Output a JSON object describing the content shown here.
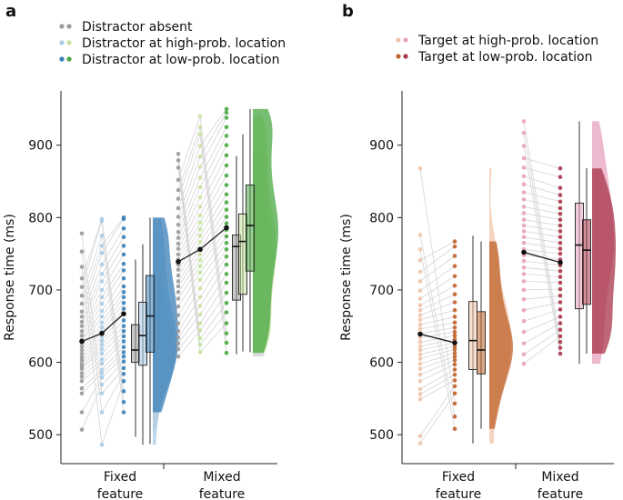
{
  "chart_data": [
    {
      "panel_label": "a",
      "type": "raincloud",
      "ylabel": "Response time (ms)",
      "yticks": [
        500,
        600,
        700,
        800,
        900
      ],
      "ylim": [
        460,
        975
      ],
      "groups": [
        "Fixed\nfeature",
        "Mixed\nfeature"
      ],
      "legend": [
        {
          "label": "Distractor absent",
          "dots": [
            "#9a9a9a",
            "#9a9a9a"
          ]
        },
        {
          "label": "Distractor at high-prob. location",
          "dots": [
            "#a9cbe6",
            "#c6e3a1"
          ]
        },
        {
          "label": "Distractor at low-prob. location",
          "dots": [
            "#3a7fb7",
            "#4aa844"
          ]
        }
      ],
      "series_colors": {
        "Fixed": [
          "#9a9a9a",
          "#a9cbe6",
          "#3a7fb7"
        ],
        "Mixed": [
          "#9a9a9a",
          "#c6e3a1",
          "#4aa844"
        ]
      },
      "means": {
        "Fixed": [
          629,
          640,
          667
        ],
        "Mixed": [
          739,
          756,
          786
        ]
      },
      "boxes": {
        "Fixed": [
          {
            "q1": 600,
            "median": 617,
            "q3": 652,
            "whisker_low": 497,
            "whisker_high": 742
          },
          {
            "q1": 596,
            "median": 637,
            "q3": 683,
            "whisker_low": 486,
            "whisker_high": 763
          },
          {
            "q1": 614,
            "median": 664,
            "q3": 720,
            "whisker_low": 487,
            "whisker_high": 800
          }
        ],
        "Mixed": [
          {
            "q1": 686,
            "median": 760,
            "q3": 776,
            "whisker_low": 611,
            "whisker_high": 885
          },
          {
            "q1": 694,
            "median": 767,
            "q3": 805,
            "whisker_low": 615,
            "whisker_high": 915
          },
          {
            "q1": 726,
            "median": 789,
            "q3": 845,
            "whisker_low": 614,
            "whisker_high": 950
          }
        ]
      },
      "points": {
        "Fixed": [
          [
            507,
            531,
            557,
            564,
            574,
            580,
            585,
            591,
            594,
            598,
            603,
            607,
            612,
            617,
            622,
            627,
            631,
            637,
            643,
            650,
            656,
            663,
            670,
            681,
            692,
            704,
            716,
            732,
            753,
            778
          ],
          [
            486,
            531,
            557,
            569,
            579,
            585,
            590,
            598,
            604,
            612,
            618,
            624,
            630,
            636,
            642,
            648,
            655,
            663,
            671,
            681,
            690,
            700,
            712,
            722,
            735,
            751,
            761,
            775,
            795,
            798
          ],
          [
            531,
            545,
            560,
            574,
            584,
            592,
            601,
            608,
            614,
            621,
            629,
            636,
            643,
            650,
            658,
            667,
            674,
            682,
            690,
            697,
            705,
            716,
            727,
            736,
            749,
            761,
            773,
            785,
            798,
            800
          ]
        ],
        "Mixed": [
          [
            608,
            618,
            626,
            634,
            643,
            654,
            665,
            677,
            688,
            697,
            705,
            712,
            720,
            728,
            735,
            742,
            749,
            757,
            764,
            772,
            780,
            790,
            801,
            813,
            826,
            838,
            852,
            869,
            879,
            888
          ],
          [
            614,
            624,
            633,
            644,
            654,
            666,
            678,
            690,
            702,
            714,
            724,
            733,
            741,
            749,
            757,
            766,
            775,
            784,
            793,
            803,
            815,
            828,
            842,
            855,
            870,
            884,
            899,
            915,
            925,
            940
          ],
          [
            613,
            627,
            640,
            654,
            669,
            682,
            696,
            710,
            722,
            735,
            746,
            756,
            765,
            774,
            783,
            792,
            801,
            811,
            821,
            832,
            845,
            858,
            872,
            886,
            900,
            913,
            925,
            938,
            945,
            950
          ]
        ]
      }
    },
    {
      "panel_label": "b",
      "type": "raincloud",
      "ylabel": "Response time (ms)",
      "yticks": [
        500,
        600,
        700,
        800,
        900
      ],
      "ylim": [
        460,
        975
      ],
      "groups": [
        "Fixed\nfeature",
        "Mixed\nfeature"
      ],
      "legend": [
        {
          "label": "Target at high-prob. location",
          "dots": [
            "#f0c4a9",
            "#e7a2bf"
          ]
        },
        {
          "label": "Target at low-prob. location",
          "dots": [
            "#c0622a",
            "#a8364a"
          ]
        }
      ],
      "series_colors": {
        "Fixed": [
          "#f0c4a9",
          "#c0622a"
        ],
        "Mixed": [
          "#e7a2bf",
          "#a8364a"
        ]
      },
      "means": {
        "Fixed": [
          639,
          627
        ],
        "Mixed": [
          752,
          738
        ]
      },
      "boxes": {
        "Fixed": [
          {
            "q1": 590,
            "median": 630,
            "q3": 684,
            "whisker_low": 488,
            "whisker_high": 775
          },
          {
            "q1": 584,
            "median": 617,
            "q3": 670,
            "whisker_low": 508,
            "whisker_high": 767
          }
        ],
        "Mixed": [
          {
            "q1": 674,
            "median": 762,
            "q3": 820,
            "whisker_low": 598,
            "whisker_high": 933
          },
          {
            "q1": 680,
            "median": 755,
            "q3": 797,
            "whisker_low": 612,
            "whisker_high": 868
          }
        ]
      },
      "points": {
        "Fixed": [
          [
            488,
            498,
            549,
            556,
            563,
            574,
            583,
            591,
            598,
            605,
            611,
            617,
            622,
            628,
            634,
            640,
            646,
            652,
            659,
            665,
            672,
            679,
            688,
            699,
            712,
            725,
            741,
            756,
            776,
            868
          ],
          [
            508,
            525,
            543,
            557,
            567,
            575,
            583,
            590,
            597,
            603,
            608,
            613,
            618,
            622,
            627,
            632,
            637,
            642,
            648,
            655,
            663,
            672,
            683,
            694,
            706,
            719,
            733,
            747,
            760,
            767
          ]
        ],
        "Mixed": [
          [
            598,
            611,
            626,
            642,
            657,
            672,
            687,
            700,
            712,
            722,
            731,
            740,
            748,
            756,
            765,
            773,
            781,
            789,
            797,
            806,
            815,
            825,
            835,
            846,
            857,
            869,
            882,
            899,
            917,
            933
          ],
          [
            612,
            620,
            628,
            636,
            645,
            654,
            663,
            673,
            683,
            692,
            701,
            710,
            718,
            726,
            734,
            742,
            750,
            757,
            765,
            773,
            781,
            789,
            797,
            805,
            813,
            822,
            831,
            841,
            856,
            868
          ]
        ]
      }
    }
  ]
}
